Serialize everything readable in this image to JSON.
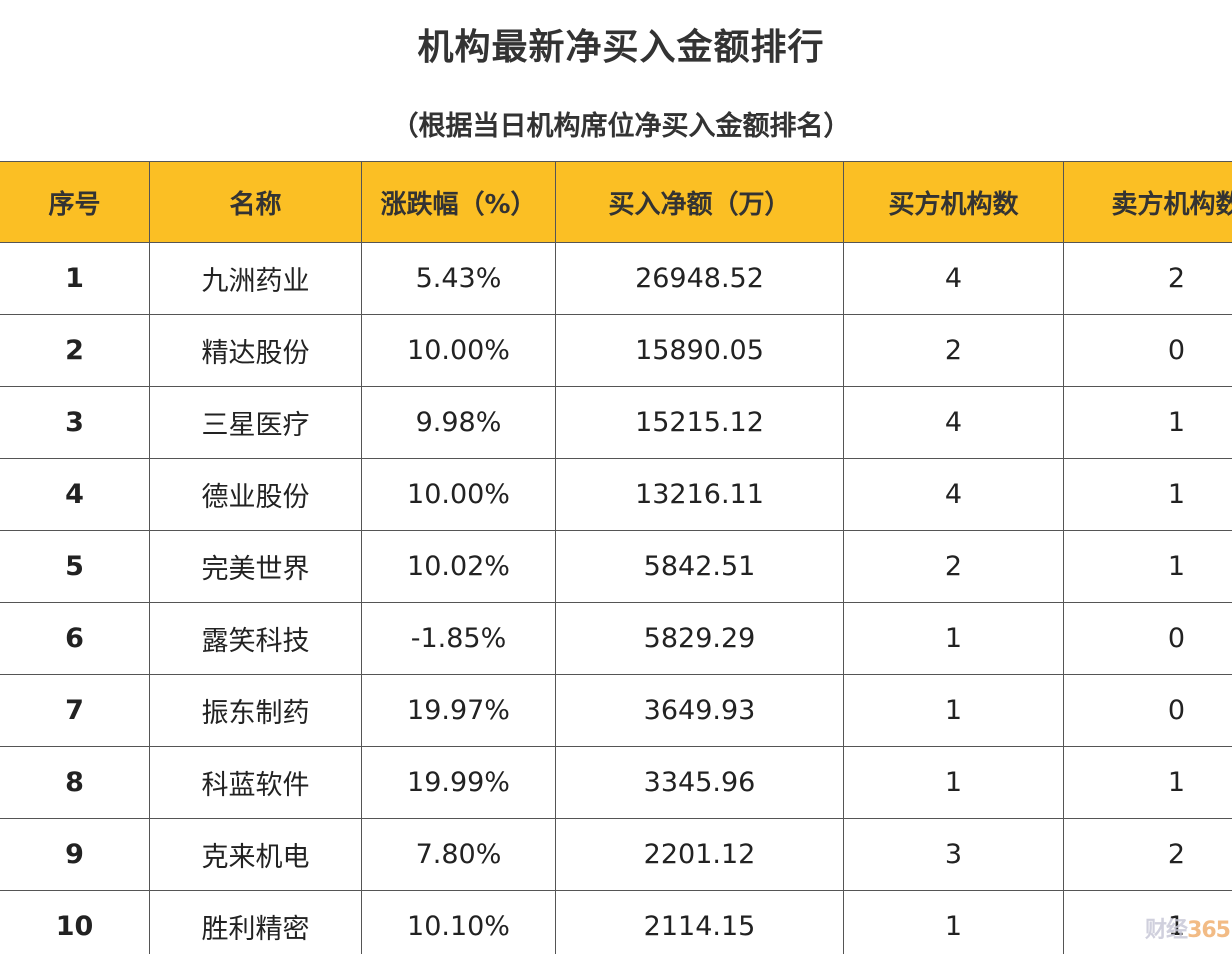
{
  "title": "机构最新净买入金额排行",
  "subtitle": "（根据当日机构席位净买入金额排名）",
  "table": {
    "headers": [
      "序号",
      "名称",
      "涨跌幅（%）",
      "买入净额（万）",
      "买方机构数",
      "卖方机构数"
    ],
    "rows": [
      [
        "1",
        "九洲药业",
        "5.43%",
        "26948.52",
        "4",
        "2"
      ],
      [
        "2",
        "精达股份",
        "10.00%",
        "15890.05",
        "2",
        "0"
      ],
      [
        "3",
        "三星医疗",
        "9.98%",
        "15215.12",
        "4",
        "1"
      ],
      [
        "4",
        "德业股份",
        "10.00%",
        "13216.11",
        "4",
        "1"
      ],
      [
        "5",
        "完美世界",
        "10.02%",
        "5842.51",
        "2",
        "1"
      ],
      [
        "6",
        "露笑科技",
        "-1.85%",
        "5829.29",
        "1",
        "0"
      ],
      [
        "7",
        "振东制药",
        "19.97%",
        "3649.93",
        "1",
        "0"
      ],
      [
        "8",
        "科蓝软件",
        "19.99%",
        "3345.96",
        "1",
        "1"
      ],
      [
        "9",
        "克来机电",
        "7.80%",
        "2201.12",
        "3",
        "2"
      ],
      [
        "10",
        "胜利精密",
        "10.10%",
        "2114.15",
        "1",
        "1"
      ]
    ]
  },
  "watermark": {
    "text": "财经",
    "number": "365"
  },
  "colors": {
    "header_bg": "#fbbf24",
    "border": "#555555"
  }
}
